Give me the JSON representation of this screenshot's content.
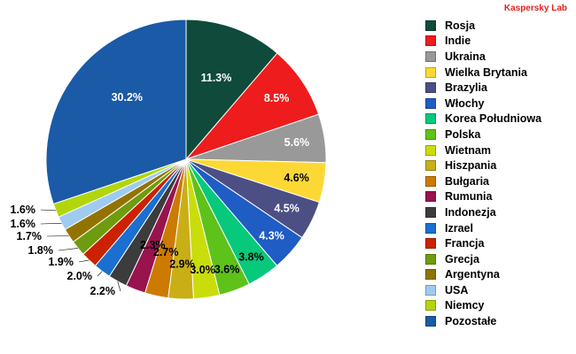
{
  "watermark": "Kaspersky Lab",
  "chart_data": {
    "type": "pie",
    "title": "",
    "slices": [
      {
        "label": "Rosja",
        "value": 11.3,
        "value_label": "11.3%",
        "color": "#0f4a3b"
      },
      {
        "label": "Indie",
        "value": 8.5,
        "value_label": "8.5%",
        "color": "#ee1c1c"
      },
      {
        "label": "Ukraina",
        "value": 5.6,
        "value_label": "5.6%",
        "color": "#999999"
      },
      {
        "label": "Wielka Brytania",
        "value": 4.6,
        "value_label": "4.6%",
        "color": "#fdd835"
      },
      {
        "label": "Brazylia",
        "value": 4.5,
        "value_label": "4.5%",
        "color": "#4c4f84"
      },
      {
        "label": "Włochy",
        "value": 4.3,
        "value_label": "4.3%",
        "color": "#1f5cc4"
      },
      {
        "label": "Korea Południowa",
        "value": 3.8,
        "value_label": "3.8%",
        "color": "#07c97b"
      },
      {
        "label": "Polska",
        "value": 3.6,
        "value_label": "3.6%",
        "color": "#5ec21a"
      },
      {
        "label": "Wietnam",
        "value": 3.0,
        "value_label": "3.0%",
        "color": "#c9dd0b"
      },
      {
        "label": "Hiszpania",
        "value": 2.9,
        "value_label": "2.9%",
        "color": "#c9ae16"
      },
      {
        "label": "Bułgaria",
        "value": 2.7,
        "value_label": "2.7%",
        "color": "#cc7a00"
      },
      {
        "label": "Rumunia",
        "value": 2.3,
        "value_label": "2.3%",
        "color": "#99134f"
      },
      {
        "label": "Indonezja",
        "value": 2.2,
        "value_label": "2.2%",
        "color": "#3c3c3c"
      },
      {
        "label": "Izrael",
        "value": 2.0,
        "value_label": "2.0%",
        "color": "#1a6fd1"
      },
      {
        "label": "Francja",
        "value": 1.9,
        "value_label": "1.9%",
        "color": "#cc2200"
      },
      {
        "label": "Grecja",
        "value": 1.8,
        "value_label": "1.8%",
        "color": "#6f9c0e"
      },
      {
        "label": "Argentyna",
        "value": 1.7,
        "value_label": "1.7%",
        "color": "#937300"
      },
      {
        "label": "USA",
        "value": 1.6,
        "value_label": "1.6%",
        "color": "#9fcbf0"
      },
      {
        "label": "Niemcy",
        "value": 1.6,
        "value_label": "1.6%",
        "color": "#b2d60b"
      },
      {
        "label": "Pozostałe",
        "value": 30.2,
        "value_label": "30.2%",
        "color": "#1a5aa6"
      }
    ]
  }
}
